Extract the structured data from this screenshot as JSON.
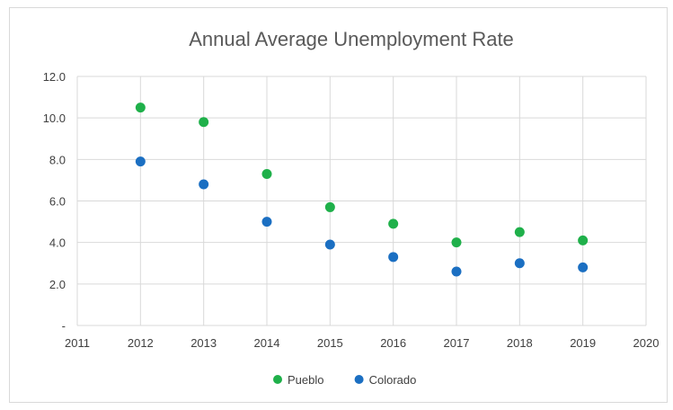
{
  "chart_data": {
    "type": "scatter",
    "title": "Annual Average Unemployment Rate",
    "xlabel": "",
    "ylabel": "",
    "xlim": [
      2011,
      2020
    ],
    "ylim": [
      0,
      12
    ],
    "x_ticks": [
      "2011",
      "2012",
      "2013",
      "2014",
      "2015",
      "2016",
      "2017",
      "2018",
      "2019",
      "2020"
    ],
    "y_ticks": [
      "-",
      "2.0",
      "4.0",
      "6.0",
      "8.0",
      "10.0",
      "12.0"
    ],
    "grid": "both",
    "legend_position": "bottom",
    "series": [
      {
        "name": "Pueblo",
        "color": "#1fb04a",
        "x": [
          2012,
          2013,
          2014,
          2015,
          2016,
          2017,
          2018,
          2019
        ],
        "y": [
          10.5,
          9.8,
          7.3,
          5.7,
          4.9,
          4.0,
          4.5,
          4.1
        ]
      },
      {
        "name": "Colorado",
        "color": "#1b6fc2",
        "x": [
          2012,
          2013,
          2014,
          2015,
          2016,
          2017,
          2018,
          2019
        ],
        "y": [
          7.9,
          6.8,
          5.0,
          3.9,
          3.3,
          2.6,
          3.0,
          2.8
        ]
      }
    ]
  }
}
